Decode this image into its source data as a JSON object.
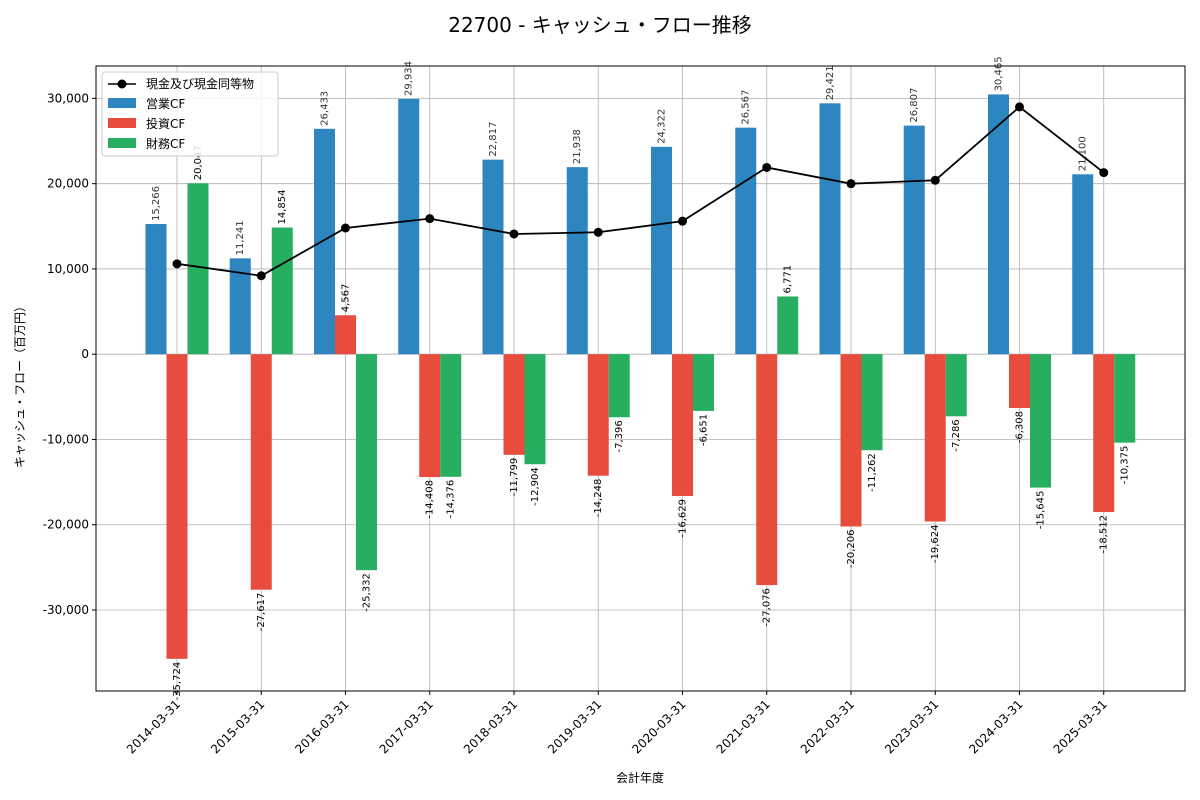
{
  "chart_data": {
    "type": "bar",
    "title": "22700 - キャッシュ・フロー推移",
    "xlabel": "会計年度",
    "ylabel": "キャッシュ・フロー（百万円）",
    "ylim": [
      -39500,
      33800
    ],
    "yticks": [
      -30000,
      -20000,
      -10000,
      0,
      10000,
      20000,
      30000
    ],
    "ytick_labels": [
      "-30,000",
      "-20,000",
      "-10,000",
      "0",
      "10,000",
      "20,000",
      "30,000"
    ],
    "grid": true,
    "legend_position": "top-left",
    "categories": [
      "2014-03-31",
      "2015-03-31",
      "2016-03-31",
      "2017-03-31",
      "2018-03-31",
      "2019-03-31",
      "2020-03-31",
      "2021-03-31",
      "2022-03-31",
      "2023-03-31",
      "2024-03-31",
      "2025-03-31"
    ],
    "series": [
      {
        "name": "営業CF",
        "color": "#2e86c1",
        "values": [
          15266,
          11241,
          26433,
          29934,
          22817,
          21938,
          24322,
          26567,
          29421,
          26807,
          30465,
          21100
        ],
        "labels": [
          "15,266",
          "11,241",
          "26,433",
          "29,934",
          "22,817",
          "21,938",
          "24,322",
          "26,567",
          "29,421",
          "26,807",
          "30,465",
          "21,100"
        ]
      },
      {
        "name": "投資CF",
        "color": "#e74c3c",
        "values": [
          -35724,
          -27617,
          4567,
          -14408,
          -11799,
          -14248,
          -16629,
          -27076,
          -20206,
          -19624,
          -6308,
          -18512
        ],
        "labels": [
          "-35,724",
          "-27,617",
          "4,567",
          "-14,408",
          "-11,799",
          "-14,248",
          "-16,629",
          "-27,076",
          "-20,206",
          "-19,624",
          "-6,308",
          "-18,512"
        ]
      },
      {
        "name": "財務CF",
        "color": "#27ae60",
        "values": [
          20047,
          14854,
          -25332,
          -14376,
          -12904,
          -7396,
          -6651,
          6771,
          -11262,
          -7286,
          -15645,
          -10375
        ],
        "labels": [
          "20,047",
          "14,854",
          "-25,332",
          "-14,376",
          "-12,904",
          "-7,396",
          "-6,651",
          "6,771",
          "-11,262",
          "-7,286",
          "-15,645",
          "-10,375"
        ]
      }
    ],
    "line": {
      "name": "現金及び現金同等物",
      "color": "#000000",
      "values": [
        10600,
        9200,
        14800,
        15900,
        14100,
        14300,
        15600,
        21900,
        20000,
        20400,
        29000,
        21300
      ]
    }
  }
}
